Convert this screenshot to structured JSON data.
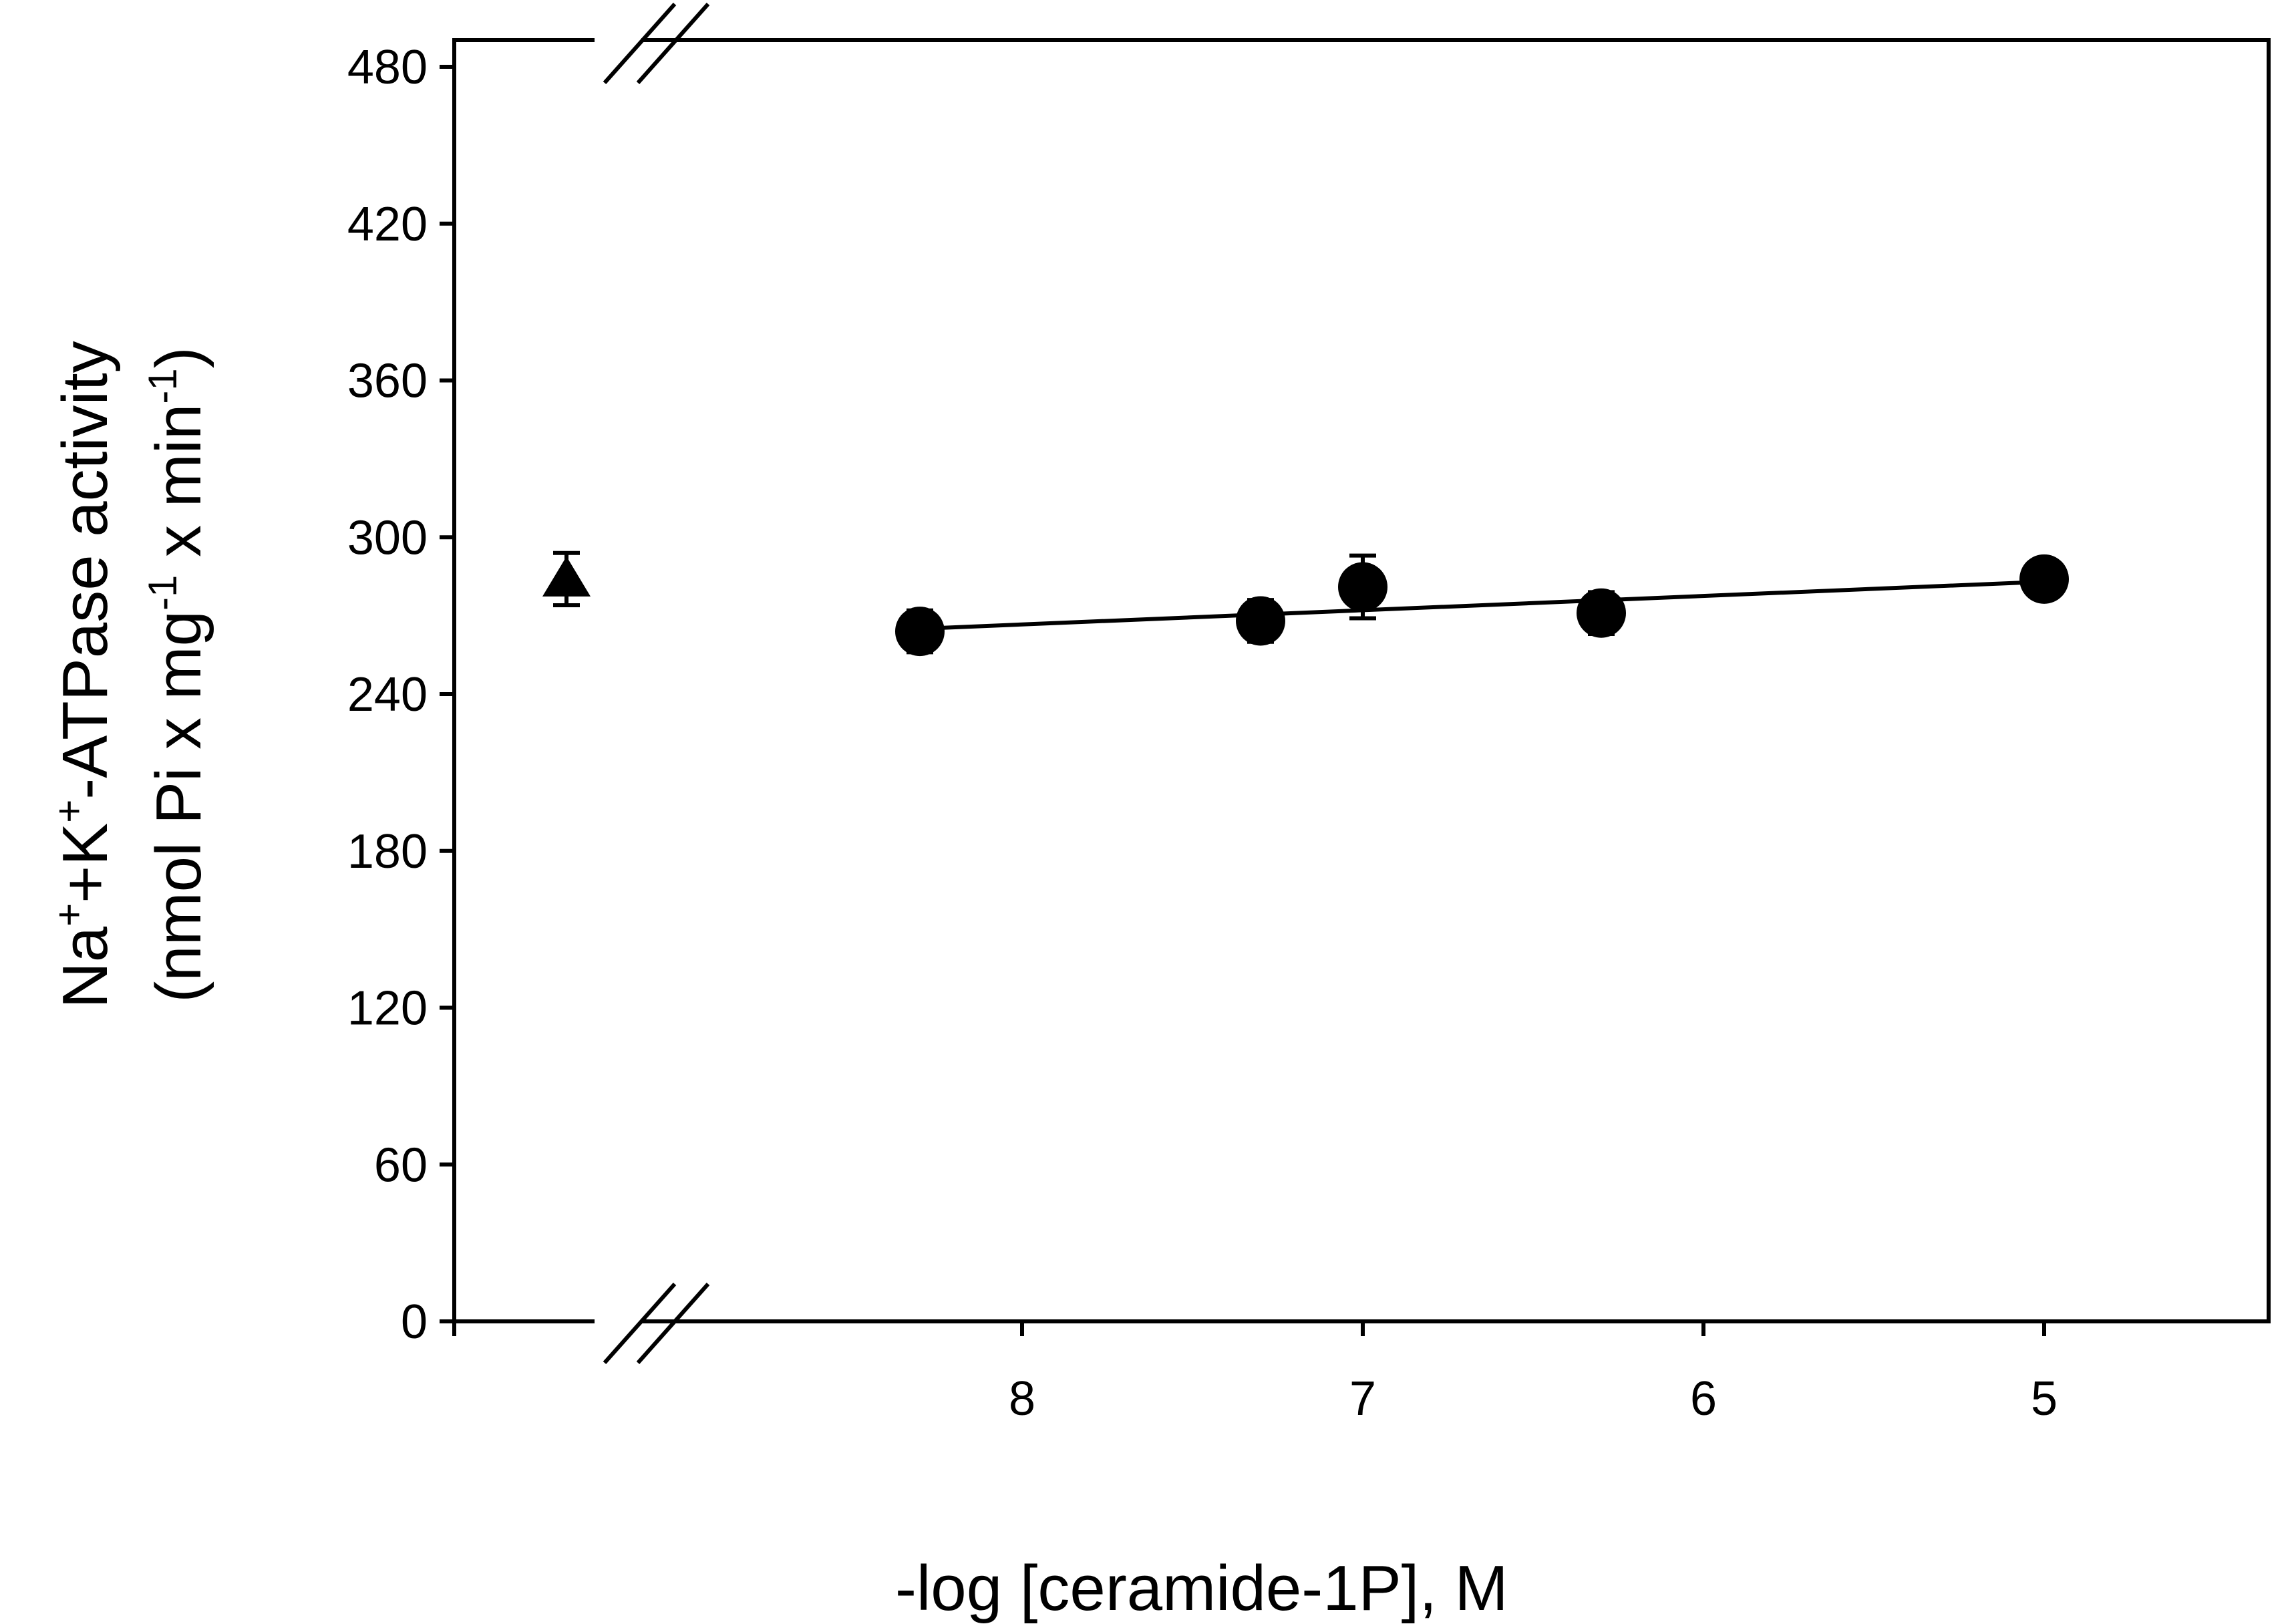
{
  "chart_data": {
    "type": "scatter",
    "xlabel": "-log [ceramide-1P], M",
    "ylabel": {
      "line1": [
        "Na",
        "+",
        "+K",
        "+",
        "-ATPase activity"
      ],
      "line2": [
        "(nmol Pi x mg",
        "-1",
        " x min",
        "-1",
        ")"
      ]
    },
    "x_axis": {
      "reversed": true,
      "lim": [
        4.35,
        9.5
      ],
      "ticks": [
        8,
        7,
        6,
        5
      ],
      "tick_labels": [
        "8",
        "7",
        "6",
        "5"
      ],
      "broken": true
    },
    "y_axis": {
      "lim": [
        0,
        480
      ],
      "ticks": [
        0,
        60,
        120,
        180,
        240,
        300,
        360,
        420,
        480
      ],
      "tick_labels": [
        "0",
        "60",
        "120",
        "180",
        "240",
        "300",
        "360",
        "420",
        "480"
      ],
      "broken": true
    },
    "control": {
      "marker": "triangle",
      "y": 284,
      "error": 10
    },
    "series": [
      {
        "marker": "circle",
        "x": [
          8.3,
          7.3,
          7.0,
          6.3,
          5.0
        ],
        "y": [
          264,
          268,
          281,
          271,
          284
        ],
        "error": [
          8,
          8,
          12,
          8,
          6
        ]
      }
    ],
    "fit_line": {
      "x": [
        8.3,
        5.0
      ],
      "y": [
        265,
        283
      ]
    },
    "grid": false,
    "legend": "none"
  }
}
